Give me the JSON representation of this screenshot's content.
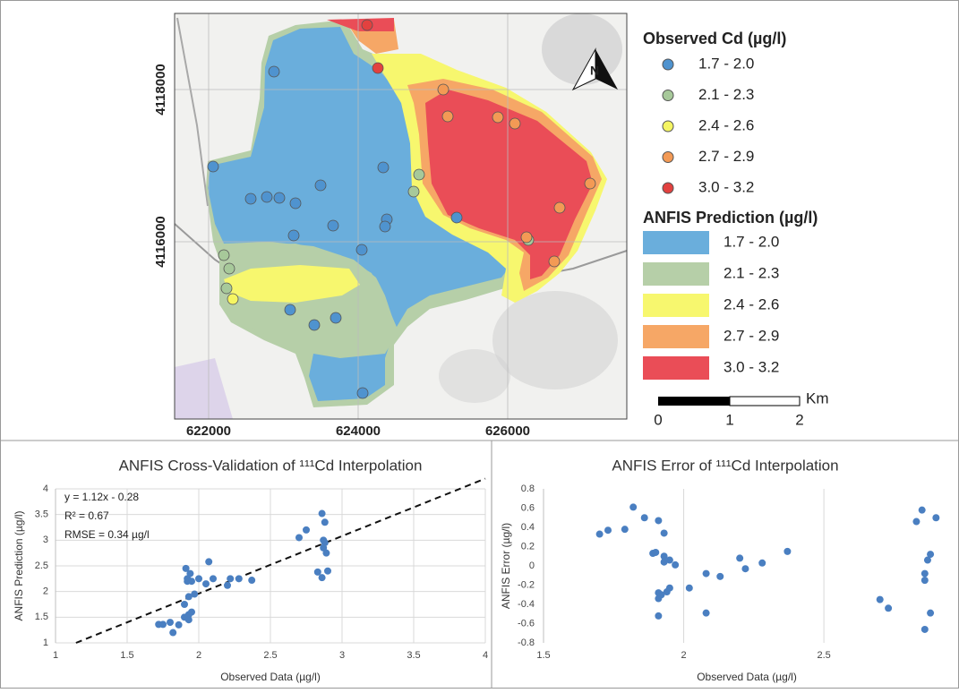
{
  "map": {
    "xticks": [
      622000,
      624000,
      626000
    ],
    "yticks": [
      4118000,
      4116000
    ],
    "north_label": "N",
    "observed_legend": {
      "title": "Observed Cd (µg/l)",
      "items": [
        {
          "label": "1.7 - 2.0",
          "color": "#4f93cf"
        },
        {
          "label": "2.1 - 2.3",
          "color": "#a7c99a"
        },
        {
          "label": "2.4 - 2.6",
          "color": "#f5f562"
        },
        {
          "label": "2.7 - 2.9",
          "color": "#f39a55"
        },
        {
          "label": "3.0 - 3.2",
          "color": "#e2413f"
        }
      ]
    },
    "prediction_legend": {
      "title": "ANFIS Prediction (µg/l)",
      "items": [
        {
          "label": "1.7 - 2.0",
          "color": "#6aaedc"
        },
        {
          "label": "2.1 - 2.3",
          "color": "#b6cfa8"
        },
        {
          "label": "2.4 - 2.6",
          "color": "#f7f76e"
        },
        {
          "label": "2.7 - 2.9",
          "color": "#f6a766"
        },
        {
          "label": "3.0 - 3.2",
          "color": "#ea4d57"
        }
      ]
    },
    "scale_bar": {
      "labels": [
        0,
        1,
        2
      ],
      "unit": "Km"
    }
  },
  "chart_data": [
    {
      "type": "scatter",
      "title": "ANFIS Cross-Validation of ¹¹¹Cd Interpolation",
      "x_label": "Observed Data (µg/l)",
      "y_label": "ANFIS Prediction (µg/l)",
      "color": "#4a7fc1",
      "x": [
        1.72,
        1.75,
        1.8,
        1.82,
        1.86,
        1.9,
        1.9,
        1.91,
        1.92,
        1.92,
        1.93,
        1.93,
        1.93,
        1.94,
        1.95,
        1.95,
        1.97,
        2.0,
        2.05,
        2.07,
        2.1,
        2.2,
        2.22,
        2.28,
        2.37,
        2.7,
        2.75,
        2.83,
        2.86,
        2.86,
        2.87,
        2.87,
        2.88,
        2.88,
        2.89,
        2.9
      ],
      "values": [
        1.36,
        1.36,
        1.4,
        1.2,
        1.35,
        1.5,
        1.75,
        2.45,
        2.25,
        2.2,
        1.55,
        1.45,
        1.9,
        2.35,
        2.2,
        1.6,
        1.95,
        2.25,
        2.15,
        2.58,
        2.25,
        2.12,
        2.25,
        2.25,
        2.22,
        3.05,
        3.2,
        2.38,
        2.27,
        3.52,
        3.0,
        2.85,
        3.35,
        2.95,
        2.75,
        2.4
      ],
      "xlim": [
        1,
        4
      ],
      "ylim": [
        1,
        4
      ],
      "xticks": [
        1,
        1.5,
        2,
        2.5,
        3,
        3.5,
        4
      ],
      "yticks": [
        1,
        1.5,
        2,
        2.5,
        3,
        3.5,
        4
      ],
      "grid": "both",
      "trendline": {
        "slope": 1.12,
        "intercept": -0.28
      },
      "annotations": [
        "y = 1.12x - 0.28",
        "R² = 0.67",
        "RMSE = 0.34 µg/l"
      ]
    },
    {
      "type": "scatter",
      "title": "ANFIS Error of ¹¹¹Cd Interpolation",
      "x_label": "Observed Data (µg/l)",
      "y_label": "ANFIS Error (µg/l)",
      "color": "#4a7fc1",
      "x": [
        1.7,
        1.73,
        1.79,
        1.82,
        1.86,
        1.89,
        1.9,
        1.91,
        1.91,
        1.91,
        1.91,
        1.92,
        1.93,
        1.93,
        1.93,
        1.94,
        1.95,
        1.95,
        1.97,
        2.02,
        2.08,
        2.08,
        2.13,
        2.2,
        2.22,
        2.28,
        2.37,
        2.7,
        2.73,
        2.83,
        2.85,
        2.86,
        2.86,
        2.86,
        2.87,
        2.88,
        2.88,
        2.9
      ],
      "values": [
        0.33,
        0.37,
        0.38,
        0.61,
        0.5,
        0.13,
        0.14,
        0.47,
        -0.28,
        -0.34,
        -0.52,
        -0.3,
        0.34,
        0.1,
        0.04,
        -0.27,
        -0.23,
        0.06,
        0.01,
        -0.23,
        -0.08,
        -0.49,
        -0.11,
        0.08,
        -0.03,
        0.03,
        0.15,
        -0.35,
        -0.44,
        0.46,
        0.58,
        -0.08,
        -0.15,
        -0.66,
        0.06,
        0.12,
        -0.49,
        0.5
      ],
      "xlim": [
        1.5,
        2.95
      ],
      "ylim": [
        -0.8,
        0.8
      ],
      "xticks": [
        1.5,
        2,
        2.5
      ],
      "yticks": [
        -0.8,
        -0.6,
        -0.4,
        -0.2,
        0,
        0.2,
        0.4,
        0.6,
        0.8
      ],
      "grid": "x"
    }
  ]
}
